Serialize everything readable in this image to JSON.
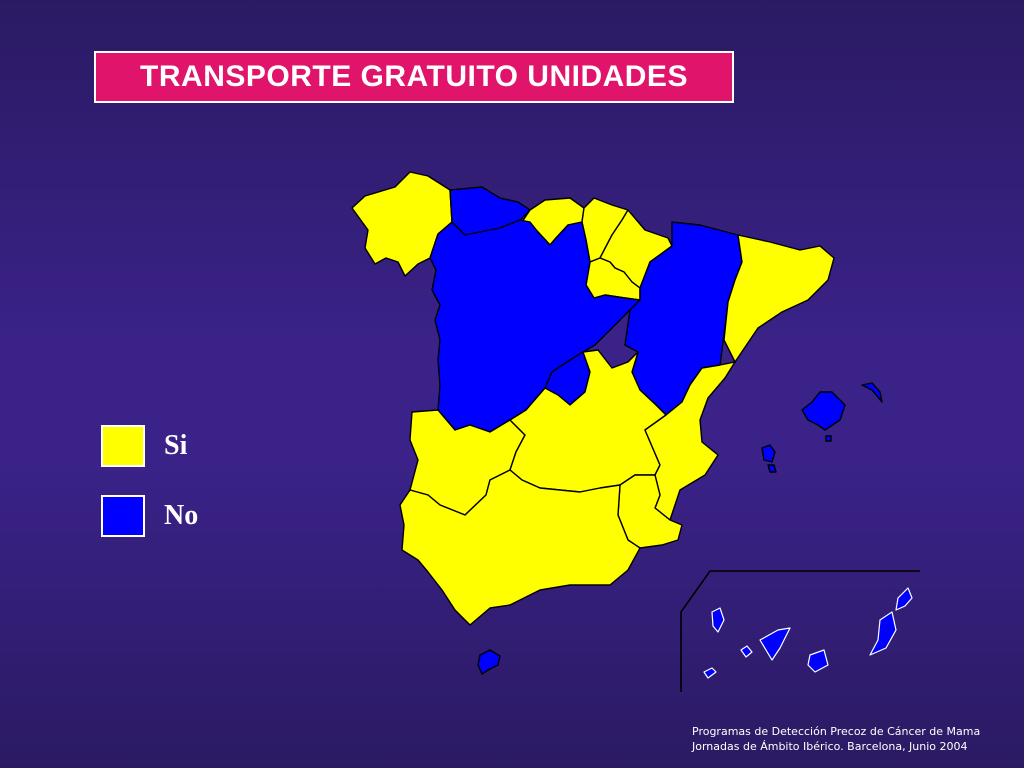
{
  "slide": {
    "title": "TRANSPORTE GRATUITO UNIDADES",
    "title_bg": "#e0146b"
  },
  "legend": {
    "items": [
      {
        "label": "Si",
        "color": "#ffff00"
      },
      {
        "label": "No",
        "color": "#0000ff"
      }
    ]
  },
  "map": {
    "regions": [
      {
        "name": "Galicia",
        "value": "Si"
      },
      {
        "name": "Asturias",
        "value": "No"
      },
      {
        "name": "Cantabria",
        "value": "Si"
      },
      {
        "name": "País Vasco",
        "value": "Si"
      },
      {
        "name": "Navarra",
        "value": "Si"
      },
      {
        "name": "La Rioja",
        "value": "Si"
      },
      {
        "name": "Castilla y León",
        "value": "No"
      },
      {
        "name": "Madrid",
        "value": "No"
      },
      {
        "name": "Aragón",
        "value": "No"
      },
      {
        "name": "Cataluña",
        "value": "Si"
      },
      {
        "name": "Extremadura",
        "value": "Si"
      },
      {
        "name": "Castilla-La Mancha",
        "value": "Si"
      },
      {
        "name": "Comunidad Valenciana",
        "value": "Si"
      },
      {
        "name": "Murcia",
        "value": "Si"
      },
      {
        "name": "Andalucía",
        "value": "Si"
      },
      {
        "name": "Islas Baleares",
        "value": "No"
      },
      {
        "name": "Islas Canarias",
        "value": "No"
      },
      {
        "name": "Ceuta",
        "value": "No"
      }
    ]
  },
  "footer": {
    "line1": "Programas de Detección Precoz de Cáncer de Mama",
    "line2": "Jornadas de Ámbito Ibérico. Barcelona, Junio 2004"
  }
}
